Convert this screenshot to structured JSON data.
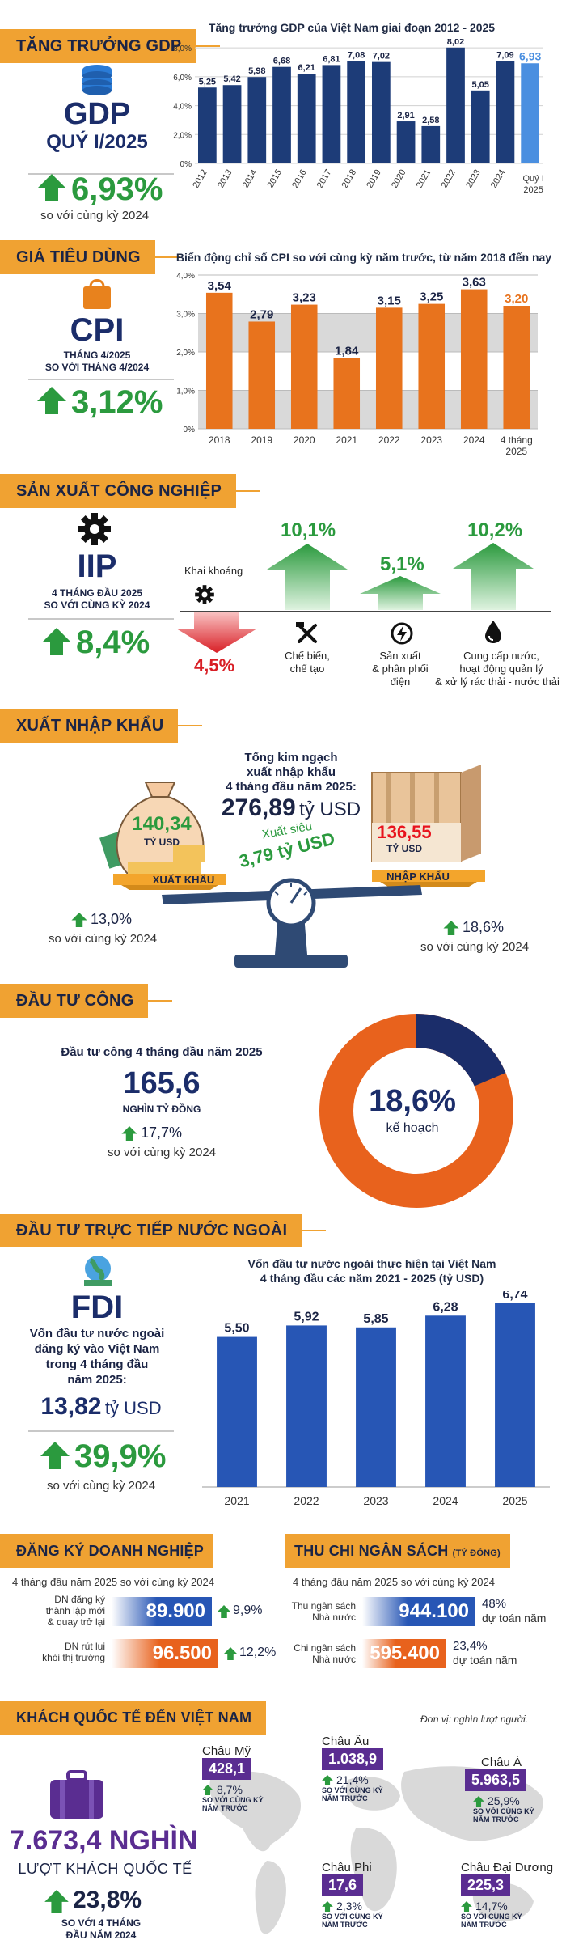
{
  "gdp": {
    "header": "TĂNG TRƯỞNG GDP",
    "title": "GDP",
    "period": "QUÝ I/2025",
    "value": "6,93%",
    "compare": "so với cùng kỳ 2024",
    "chart_title": "Tăng trưởng GDP của Việt Nam giai đoạn 2012 - 2025"
  },
  "cpi": {
    "header": "GIÁ TIÊU DÙNG",
    "title": "CPI",
    "period_line1": "THÁNG 4/2025",
    "period_line2": "SO VỚI THÁNG 4/2024",
    "value": "3,12%",
    "chart_title": "Biến động chỉ số CPI so với cùng kỳ năm trước, từ năm 2018 đến nay"
  },
  "iip": {
    "header": "SẢN XUẤT CÔNG NGHIỆP",
    "title": "IIP",
    "period_line1": "4 THÁNG ĐẦU 2025",
    "period_line2": "SO VỚI CÙNG KỲ 2024",
    "value": "8,4%",
    "mining_label": "Khai khoáng",
    "mining_value": "4,5%",
    "processing_value": "10,1%",
    "processing_label1": "Chế biến,",
    "processing_label2": "chế tạo",
    "power_value": "5,1%",
    "power_label1": "Sản xuất",
    "power_label2": "& phân phối",
    "power_label3": "điện",
    "water_value": "10,2%",
    "water_label1": "Cung cấp nước,",
    "water_label2": "hoạt động quản lý",
    "water_label3": "& xử lý rác thải - nước thải"
  },
  "trade": {
    "header": "XUẤT NHẬP KHẨU",
    "total_line1": "Tổng kim ngạch",
    "total_line2": "xuất nhập khẩu",
    "total_line3": "4 tháng đầu năm 2025:",
    "total_value": "276,89",
    "total_unit": "tỷ USD",
    "export_value": "140,34",
    "export_unit": "TỶ USD",
    "export_label": "XUẤT KHẨU",
    "import_value": "136,55",
    "import_unit": "TỶ USD",
    "import_label": "NHẬP KHẨU",
    "surplus_label": "Xuất siêu",
    "surplus_value": "3,79 tỷ USD",
    "export_growth": "13,0%",
    "import_growth": "18,6%",
    "compare": "so với cùng kỳ 2024"
  },
  "public_invest": {
    "header": "ĐẦU TƯ CÔNG",
    "title": "Đầu tư công 4 tháng đầu năm 2025",
    "value": "165,6",
    "unit": "NGHÌN TỶ ĐỒNG",
    "growth": "17,7%",
    "compare": "so với cùng kỳ 2024",
    "donut_value": "18,6%",
    "donut_label": "kế hoạch",
    "donut_fraction": 0.186
  },
  "fdi": {
    "header": "ĐẦU TƯ TRỰC TIẾP NƯỚC NGOÀI",
    "title": "FDI",
    "desc_line1": "Vốn đầu tư nước ngoài",
    "desc_line2": "đăng ký vào Việt Nam",
    "desc_line3": "trong 4 tháng đầu",
    "desc_line4": "năm 2025:",
    "value": "13,82",
    "unit": "tỷ USD",
    "growth": "39,9%",
    "compare": "so với cùng kỳ 2024",
    "chart_title_line1": "Vốn đầu tư nước ngoài thực hiện tại Việt Nam",
    "chart_title_line2": "4 tháng đầu các năm 2021 - 2025 (tỷ USD)"
  },
  "business": {
    "header": "ĐĂNG KÝ DOANH NGHIỆP",
    "subtitle": "4 tháng đầu năm 2025 so với cùng kỳ 2024",
    "new_label1": "DN đăng ký",
    "new_label2": "thành lập mới",
    "new_label3": "& quay trở lại",
    "new_value": "89.900",
    "new_growth": "9,9%",
    "exit_label1": "DN rút lui",
    "exit_label2": "khỏi thị trường",
    "exit_value": "96.500",
    "exit_growth": "12,2%"
  },
  "budget": {
    "header": "THU CHI NGÂN SÁCH",
    "header_unit": "(TỶ ĐỒNG)",
    "subtitle": "4 tháng đầu năm 2025 so với cùng kỳ 2024",
    "revenue_label1": "Thu ngân sách",
    "revenue_label2": "Nhà nước",
    "revenue_value": "944.100",
    "revenue_pct": "48%",
    "revenue_note": "dự toán năm",
    "spend_label1": "Chi ngân sách",
    "spend_label2": "Nhà nước",
    "spend_value": "595.400",
    "spend_pct": "23,4%",
    "spend_note": "dự toán năm"
  },
  "tourism": {
    "header": "KHÁCH QUỐC TẾ ĐẾN VIỆT NAM",
    "unit_note": "Đơn vị: nghìn lượt người.",
    "total_value": "7.673,4 NGHÌN",
    "total_label": "LƯỢT KHÁCH QUỐC TẾ",
    "growth": "23,8%",
    "compare_line1": "SO VỚI 4 THÁNG",
    "compare_line2": "ĐẦU NĂM 2024",
    "region_compare_line1": "SO VỚI CÙNG KỲ",
    "region_compare_line2": "NĂM TRƯỚC",
    "regions": [
      {
        "name": "Châu Mỹ",
        "value": "428,1",
        "growth": "8,7%"
      },
      {
        "name": "Châu Âu",
        "value": "1.038,9",
        "growth": "21,4%"
      },
      {
        "name": "Châu Á",
        "value": "5.963,5",
        "growth": "25,9%"
      },
      {
        "name": "Châu Phi",
        "value": "17,6",
        "growth": "2,3%"
      },
      {
        "name": "Châu Đại Dương",
        "value": "225,3",
        "growth": "14,7%"
      }
    ]
  },
  "chart_data": [
    {
      "type": "bar",
      "title": "Tăng trưởng GDP của Việt Nam giai đoạn 2012 - 2025",
      "categories": [
        "2012",
        "2013",
        "2014",
        "2015",
        "2016",
        "2017",
        "2018",
        "2019",
        "2020",
        "2021",
        "2022",
        "2023",
        "2024",
        "Quý I 2025"
      ],
      "values": [
        5.25,
        5.42,
        5.98,
        6.68,
        6.21,
        6.81,
        7.08,
        7.02,
        2.91,
        2.58,
        8.02,
        5.05,
        7.09,
        6.93
      ],
      "labels": [
        "5,25",
        "5,42",
        "5,98",
        "6,68",
        "6,21",
        "6,81",
        "7,08",
        "7,02",
        "2,91",
        "2,58",
        "8,02",
        "5,05",
        "7,09",
        "6,93"
      ],
      "yticks": [
        "0%",
        "2,0%",
        "4,0%",
        "6,0%",
        "8,0%"
      ],
      "ylim": [
        0,
        8.4
      ],
      "colors": {
        "bar": "#1d3c78",
        "highlight": "#4a8fe0"
      }
    },
    {
      "type": "bar",
      "title": "Biến động chỉ số CPI so với cùng kỳ năm trước, từ năm 2018 đến nay",
      "categories": [
        "2018",
        "2019",
        "2020",
        "2021",
        "2022",
        "2023",
        "2024",
        "4 tháng 2025"
      ],
      "values": [
        3.54,
        2.79,
        3.23,
        1.84,
        3.15,
        3.25,
        3.63,
        3.2
      ],
      "labels": [
        "3,54",
        "2,79",
        "3,23",
        "1,84",
        "3,15",
        "3,25",
        "3,63",
        "3,20"
      ],
      "yticks": [
        "0%",
        "1,0%",
        "2,0%",
        "3,0%",
        "4,0%"
      ],
      "ylim": [
        0,
        4.0
      ],
      "colors": {
        "bar": "#e8731d",
        "highlight_label": "#e8731d"
      }
    },
    {
      "type": "bar",
      "title": "Vốn đầu tư nước ngoài thực hiện tại Việt Nam 4 tháng đầu các năm 2021 - 2025 (tỷ USD)",
      "categories": [
        "2021",
        "2022",
        "2023",
        "2024",
        "2025"
      ],
      "values": [
        5.5,
        5.92,
        5.85,
        6.28,
        6.74
      ],
      "labels": [
        "5,50",
        "5,92",
        "5,85",
        "6,28",
        "6,74"
      ],
      "ylim": [
        0,
        7.0
      ],
      "colors": {
        "bar": "#2756b5"
      }
    }
  ]
}
